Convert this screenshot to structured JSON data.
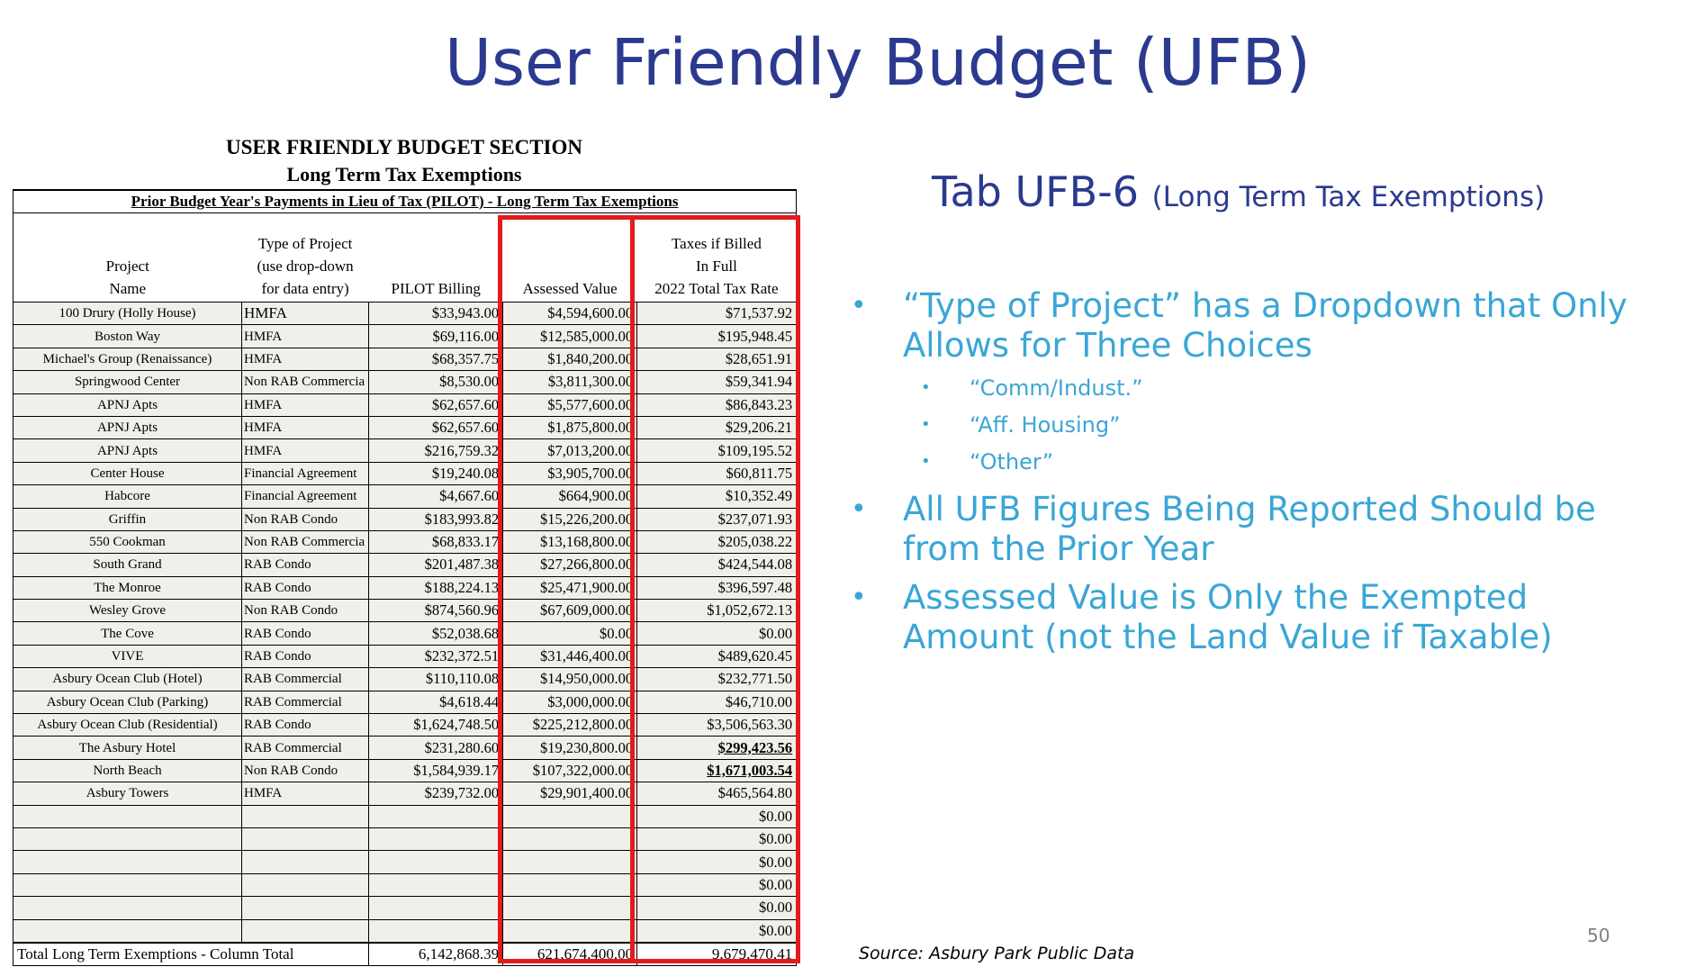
{
  "slide": {
    "title": "User Friendly Budget (UFB)",
    "page_number": "50",
    "source": "Source: Asbury Park Public Data"
  },
  "sheet": {
    "heading1": "USER FRIENDLY BUDGET SECTION",
    "heading2": "Long Term Tax Exemptions",
    "banner": "Prior Budget Year's Payments in Lieu of Tax (PILOT) - Long Term Tax Exemptions",
    "columns": {
      "project": [
        "Project",
        "Name"
      ],
      "type": [
        "Type of Project",
        "(use drop-down",
        "for data entry)"
      ],
      "pilot": "PILOT Billing",
      "assessed": "Assessed Value",
      "taxes": [
        "Taxes if Billed",
        "In Full",
        "2022 Total Tax Rate"
      ]
    },
    "rows": [
      {
        "name": "100 Drury (Holly House)",
        "type": "HMFA",
        "pilot": "$33,943.00",
        "assessed": "$4,594,600.00",
        "taxes": "$71,537.92"
      },
      {
        "name": "Boston Way",
        "type": "HMFA",
        "pilot": "$69,116.00",
        "assessed": "$12,585,000.00",
        "taxes": "$195,948.45"
      },
      {
        "name": "Michael's Group (Renaissance)",
        "type": "HMFA",
        "pilot": "$68,357.75",
        "assessed": "$1,840,200.00",
        "taxes": "$28,651.91"
      },
      {
        "name": "Springwood Center",
        "type": "Non RAB Commercia",
        "pilot": "$8,530.00",
        "assessed": "$3,811,300.00",
        "taxes": "$59,341.94"
      },
      {
        "name": "APNJ Apts",
        "type": "HMFA",
        "pilot": "$62,657.60",
        "assessed": "$5,577,600.00",
        "taxes": "$86,843.23"
      },
      {
        "name": "APNJ Apts",
        "type": "HMFA",
        "pilot": "$62,657.60",
        "assessed": "$1,875,800.00",
        "taxes": "$29,206.21"
      },
      {
        "name": "APNJ Apts",
        "type": "HMFA",
        "pilot": "$216,759.32",
        "assessed": "$7,013,200.00",
        "taxes": "$109,195.52"
      },
      {
        "name": "Center House",
        "type": "Financial Agreement",
        "pilot": "$19,240.08",
        "assessed": "$3,905,700.00",
        "taxes": "$60,811.75"
      },
      {
        "name": "Habcore",
        "type": "Financial Agreement",
        "pilot": "$4,667.60",
        "assessed": "$664,900.00",
        "taxes": "$10,352.49"
      },
      {
        "name": "Griffin",
        "type": "Non RAB Condo",
        "pilot": "$183,993.82",
        "assessed": "$15,226,200.00",
        "taxes": "$237,071.93"
      },
      {
        "name": "550 Cookman",
        "type": "Non RAB Commercia",
        "pilot": "$68,833.17",
        "assessed": "$13,168,800.00",
        "taxes": "$205,038.22"
      },
      {
        "name": "South Grand",
        "type": "RAB Condo",
        "pilot": "$201,487.38",
        "assessed": "$27,266,800.00",
        "taxes": "$424,544.08"
      },
      {
        "name": "The Monroe",
        "type": "RAB Condo",
        "pilot": "$188,224.13",
        "assessed": "$25,471,900.00",
        "taxes": "$396,597.48"
      },
      {
        "name": "Wesley Grove",
        "type": "Non RAB Condo",
        "pilot": "$874,560.96",
        "assessed": "$67,609,000.00",
        "taxes": "$1,052,672.13"
      },
      {
        "name": "The Cove",
        "type": "RAB Condo",
        "pilot": "$52,038.68",
        "assessed": "$0.00",
        "taxes": "$0.00"
      },
      {
        "name": "VIVE",
        "type": "RAB Condo",
        "pilot": "$232,372.51",
        "assessed": "$31,446,400.00",
        "taxes": "$489,620.45"
      },
      {
        "name": "Asbury Ocean Club (Hotel)",
        "type": "RAB Commercial",
        "pilot": "$110,110.08",
        "assessed": "$14,950,000.00",
        "taxes": "$232,771.50"
      },
      {
        "name": "Asbury Ocean Club (Parking)",
        "type": "RAB Commercial",
        "pilot": "$4,618.44",
        "assessed": "$3,000,000.00",
        "taxes": "$46,710.00"
      },
      {
        "name": "Asbury Ocean Club (Residential)",
        "type": "RAB Condo",
        "pilot": "$1,624,748.50",
        "assessed": "$225,212,800.00",
        "taxes": "$3,506,563.30"
      },
      {
        "name": "The Asbury Hotel",
        "type": "RAB Commercial",
        "pilot": "$231,280.60",
        "assessed": "$19,230,800.00",
        "taxes": "$299,423.56",
        "taxes_emphasis": true
      },
      {
        "name": "North Beach",
        "type": "Non RAB Condo",
        "pilot": "$1,584,939.17",
        "assessed": "$107,322,000.00",
        "taxes": "$1,671,003.54",
        "taxes_emphasis": true
      },
      {
        "name": "Asbury Towers",
        "type": "HMFA",
        "pilot": "$239,732.00",
        "assessed": "$29,901,400.00",
        "taxes": "$465,564.80"
      },
      {
        "name": "",
        "type": "",
        "pilot": "",
        "assessed": "",
        "taxes": "$0.00"
      },
      {
        "name": "",
        "type": "",
        "pilot": "",
        "assessed": "",
        "taxes": "$0.00"
      },
      {
        "name": "",
        "type": "",
        "pilot": "",
        "assessed": "",
        "taxes": "$0.00"
      },
      {
        "name": "",
        "type": "",
        "pilot": "",
        "assessed": "",
        "taxes": "$0.00"
      },
      {
        "name": "",
        "type": "",
        "pilot": "",
        "assessed": "",
        "taxes": "$0.00"
      },
      {
        "name": "",
        "type": "",
        "pilot": "",
        "assessed": "",
        "taxes": "$0.00"
      }
    ],
    "total": {
      "label": "Total Long Term Exemptions - Column Total",
      "pilot": "6,142,868.39",
      "assessed": "621,674,400.00",
      "taxes": "9,679,470.41"
    }
  },
  "right": {
    "tab_title": "Tab UFB-6",
    "tab_subtitle": "(Long Term Tax Exemptions)",
    "bullet_glyph": "•",
    "bullets": [
      {
        "text": "“Type of Project” has a Dropdown that Only Allows for Three Choices",
        "sub": [
          "“Comm/Indust.”",
          "“Aff. Housing”",
          "“Other”"
        ]
      },
      {
        "text": "All UFB Figures Being Reported Should be from the Prior Year",
        "sub": []
      },
      {
        "text": "Assessed Value is Only the Exempted Amount (not the Land Value if Taxable)",
        "sub": []
      }
    ]
  },
  "colors": {
    "title_blue": "#2b3a8f",
    "bullet_blue": "#3aa6d6",
    "highlight_red": "#e21c1c",
    "row_shade": "#f1efe9"
  }
}
